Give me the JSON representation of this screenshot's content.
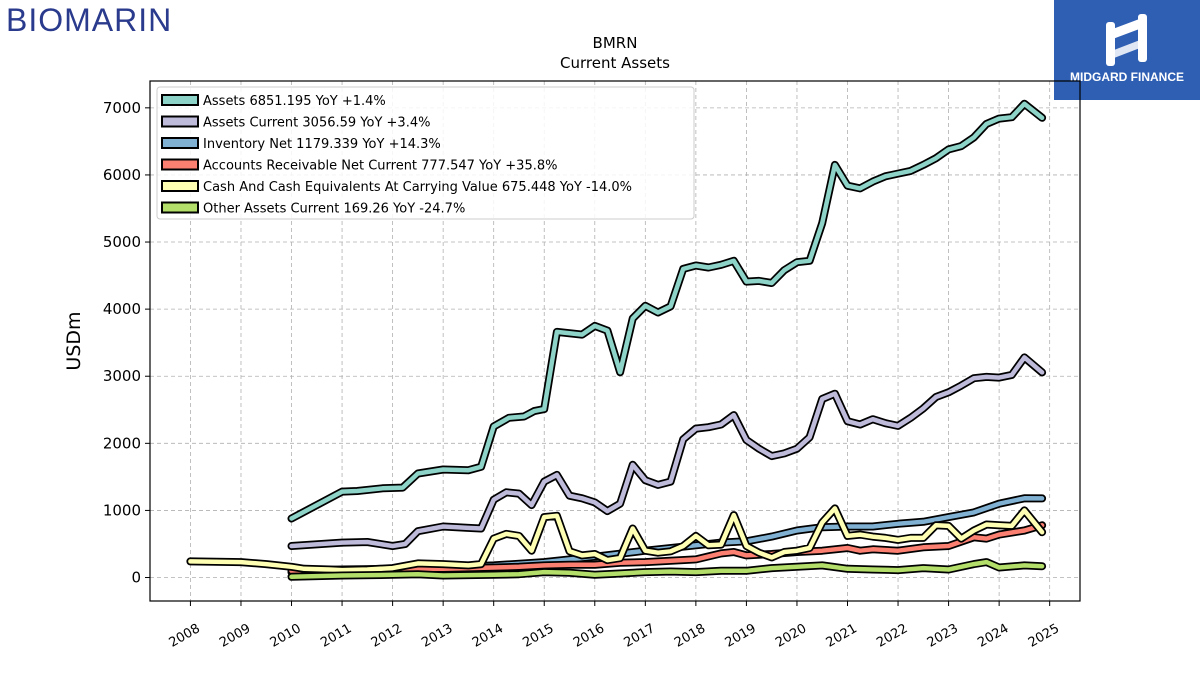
{
  "brand_left": {
    "text": "BIOMARIN"
  },
  "brand_right": {
    "text": "MIDGARD FINANCE"
  },
  "colors": {
    "assets": "#8dd3c7",
    "assets_current": "#bebada",
    "inventory": "#80b1d3",
    "receivable": "#fb8072",
    "cash": "#ffffb3",
    "other": "#b3de69",
    "brand_left": "#2a3a8c",
    "brand_right_bg": "#2f5fb3"
  },
  "chart_data": {
    "type": "line",
    "title": "BMRN",
    "subtitle": "Current  Assets",
    "ylabel": "USDm",
    "xlabel": "",
    "xlim": [
      2007.2,
      2025.6
    ],
    "ylim": [
      -350,
      7400
    ],
    "x_ticks": [
      "2008",
      "2009",
      "2010",
      "2011",
      "2012",
      "2013",
      "2014",
      "2015",
      "2016",
      "2017",
      "2018",
      "2019",
      "2020",
      "2021",
      "2022",
      "2023",
      "2024",
      "2025"
    ],
    "y_ticks": [
      "0",
      "1000",
      "2000",
      "3000",
      "4000",
      "5000",
      "6000",
      "7000"
    ],
    "grid": true,
    "legend_position": "top-left",
    "series": [
      {
        "key": "assets",
        "name": "Assets  6851.195 YoY +1.4%",
        "points": [
          [
            2010,
            880
          ],
          [
            2011,
            1280
          ],
          [
            2011.3,
            1290
          ],
          [
            2011.8,
            1330
          ],
          [
            2012.2,
            1340
          ],
          [
            2012.5,
            1550
          ],
          [
            2013,
            1610
          ],
          [
            2013.5,
            1600
          ],
          [
            2013.75,
            1650
          ],
          [
            2014,
            2250
          ],
          [
            2014.3,
            2380
          ],
          [
            2014.6,
            2400
          ],
          [
            2014.8,
            2480
          ],
          [
            2015,
            2510
          ],
          [
            2015.25,
            3660
          ],
          [
            2015.75,
            3620
          ],
          [
            2016,
            3750
          ],
          [
            2016.25,
            3680
          ],
          [
            2016.5,
            3060
          ],
          [
            2016.75,
            3860
          ],
          [
            2017,
            4050
          ],
          [
            2017.25,
            3950
          ],
          [
            2017.5,
            4040
          ],
          [
            2017.75,
            4600
          ],
          [
            2018,
            4650
          ],
          [
            2018.25,
            4620
          ],
          [
            2018.5,
            4660
          ],
          [
            2018.75,
            4720
          ],
          [
            2019,
            4410
          ],
          [
            2019.25,
            4420
          ],
          [
            2019.5,
            4390
          ],
          [
            2019.75,
            4580
          ],
          [
            2020,
            4700
          ],
          [
            2020.25,
            4720
          ],
          [
            2020.5,
            5280
          ],
          [
            2020.75,
            6150
          ],
          [
            2021,
            5840
          ],
          [
            2021.25,
            5800
          ],
          [
            2021.5,
            5900
          ],
          [
            2021.75,
            5980
          ],
          [
            2022,
            6020
          ],
          [
            2022.25,
            6060
          ],
          [
            2022.5,
            6150
          ],
          [
            2022.75,
            6250
          ],
          [
            2023,
            6380
          ],
          [
            2023.25,
            6430
          ],
          [
            2023.5,
            6560
          ],
          [
            2023.75,
            6760
          ],
          [
            2024,
            6840
          ],
          [
            2024.25,
            6860
          ],
          [
            2024.5,
            7060
          ],
          [
            2024.85,
            6851
          ]
        ]
      },
      {
        "key": "assets_current",
        "name": "Assets Current  3056.59 YoY +3.4%",
        "points": [
          [
            2010,
            470
          ],
          [
            2011,
            520
          ],
          [
            2011.5,
            530
          ],
          [
            2012,
            470
          ],
          [
            2012.25,
            500
          ],
          [
            2012.5,
            690
          ],
          [
            2013,
            760
          ],
          [
            2013.5,
            740
          ],
          [
            2013.75,
            730
          ],
          [
            2014,
            1160
          ],
          [
            2014.25,
            1270
          ],
          [
            2014.5,
            1250
          ],
          [
            2014.75,
            1080
          ],
          [
            2015,
            1430
          ],
          [
            2015.25,
            1530
          ],
          [
            2015.5,
            1220
          ],
          [
            2015.75,
            1180
          ],
          [
            2016,
            1120
          ],
          [
            2016.25,
            990
          ],
          [
            2016.5,
            1100
          ],
          [
            2016.75,
            1680
          ],
          [
            2017,
            1450
          ],
          [
            2017.25,
            1380
          ],
          [
            2017.5,
            1430
          ],
          [
            2017.75,
            2060
          ],
          [
            2018,
            2220
          ],
          [
            2018.25,
            2240
          ],
          [
            2018.5,
            2280
          ],
          [
            2018.75,
            2420
          ],
          [
            2019,
            2050
          ],
          [
            2019.25,
            1920
          ],
          [
            2019.5,
            1810
          ],
          [
            2019.75,
            1850
          ],
          [
            2020,
            1920
          ],
          [
            2020.25,
            2090
          ],
          [
            2020.5,
            2660
          ],
          [
            2020.75,
            2740
          ],
          [
            2021,
            2330
          ],
          [
            2021.25,
            2280
          ],
          [
            2021.5,
            2360
          ],
          [
            2021.75,
            2300
          ],
          [
            2022,
            2260
          ],
          [
            2022.25,
            2380
          ],
          [
            2022.5,
            2520
          ],
          [
            2022.75,
            2690
          ],
          [
            2023,
            2760
          ],
          [
            2023.25,
            2860
          ],
          [
            2023.5,
            2970
          ],
          [
            2023.75,
            2990
          ],
          [
            2024,
            2980
          ],
          [
            2024.25,
            3020
          ],
          [
            2024.5,
            3280
          ],
          [
            2024.85,
            3057
          ]
        ]
      },
      {
        "key": "inventory",
        "name": "Inventory Net  1179.339 YoY +14.3%",
        "points": [
          [
            2010,
            80
          ],
          [
            2011,
            100
          ],
          [
            2012,
            120
          ],
          [
            2013,
            150
          ],
          [
            2014,
            180
          ],
          [
            2015,
            230
          ],
          [
            2016,
            310
          ],
          [
            2017,
            400
          ],
          [
            2018,
            480
          ],
          [
            2018.5,
            520
          ],
          [
            2019,
            540
          ],
          [
            2019.5,
            610
          ],
          [
            2020,
            700
          ],
          [
            2020.5,
            750
          ],
          [
            2021,
            760
          ],
          [
            2021.5,
            760
          ],
          [
            2022,
            800
          ],
          [
            2022.5,
            830
          ],
          [
            2023,
            900
          ],
          [
            2023.5,
            970
          ],
          [
            2024,
            1100
          ],
          [
            2024.5,
            1180
          ],
          [
            2024.85,
            1179
          ]
        ]
      },
      {
        "key": "receivable",
        "name": "Accounts Receivable Net Current  777.547 YoY +35.8%",
        "points": [
          [
            2010,
            100
          ],
          [
            2011,
            120
          ],
          [
            2012,
            130
          ],
          [
            2013,
            130
          ],
          [
            2014,
            150
          ],
          [
            2014.5,
            160
          ],
          [
            2015,
            180
          ],
          [
            2015.5,
            190
          ],
          [
            2016,
            190
          ],
          [
            2016.5,
            220
          ],
          [
            2017,
            230
          ],
          [
            2017.5,
            250
          ],
          [
            2018,
            270
          ],
          [
            2018.5,
            360
          ],
          [
            2018.75,
            380
          ],
          [
            2019,
            330
          ],
          [
            2019.5,
            350
          ],
          [
            2020,
            380
          ],
          [
            2020.5,
            400
          ],
          [
            2021,
            440
          ],
          [
            2021.25,
            400
          ],
          [
            2021.5,
            420
          ],
          [
            2022,
            400
          ],
          [
            2022.5,
            450
          ],
          [
            2023,
            470
          ],
          [
            2023.5,
            600
          ],
          [
            2023.75,
            580
          ],
          [
            2024,
            640
          ],
          [
            2024.5,
            700
          ],
          [
            2024.85,
            778
          ]
        ]
      },
      {
        "key": "cash",
        "name": "Cash And Cash Equivalents At Carrying Value  675.448 YoY -14.0%",
        "points": [
          [
            2008,
            240
          ],
          [
            2009,
            230
          ],
          [
            2009.5,
            200
          ],
          [
            2010,
            160
          ],
          [
            2010.25,
            130
          ],
          [
            2010.75,
            120
          ],
          [
            2011,
            110
          ],
          [
            2011.5,
            120
          ],
          [
            2012,
            140
          ],
          [
            2012.5,
            210
          ],
          [
            2013,
            200
          ],
          [
            2013.5,
            180
          ],
          [
            2013.75,
            200
          ],
          [
            2014,
            580
          ],
          [
            2014.25,
            650
          ],
          [
            2014.5,
            620
          ],
          [
            2014.75,
            400
          ],
          [
            2015,
            900
          ],
          [
            2015.25,
            920
          ],
          [
            2015.5,
            390
          ],
          [
            2015.75,
            330
          ],
          [
            2016,
            350
          ],
          [
            2016.25,
            260
          ],
          [
            2016.5,
            290
          ],
          [
            2016.75,
            730
          ],
          [
            2017,
            400
          ],
          [
            2017.25,
            370
          ],
          [
            2017.5,
            390
          ],
          [
            2017.75,
            470
          ],
          [
            2018,
            620
          ],
          [
            2018.25,
            480
          ],
          [
            2018.5,
            490
          ],
          [
            2018.75,
            930
          ],
          [
            2019,
            470
          ],
          [
            2019.25,
            370
          ],
          [
            2019.5,
            300
          ],
          [
            2019.75,
            380
          ],
          [
            2020,
            400
          ],
          [
            2020.25,
            440
          ],
          [
            2020.5,
            820
          ],
          [
            2020.75,
            1030
          ],
          [
            2021,
            620
          ],
          [
            2021.25,
            640
          ],
          [
            2021.5,
            610
          ],
          [
            2021.75,
            590
          ],
          [
            2022,
            560
          ],
          [
            2022.25,
            590
          ],
          [
            2022.5,
            590
          ],
          [
            2022.75,
            780
          ],
          [
            2023,
            770
          ],
          [
            2023.25,
            580
          ],
          [
            2023.5,
            700
          ],
          [
            2023.75,
            790
          ],
          [
            2024,
            780
          ],
          [
            2024.25,
            770
          ],
          [
            2024.5,
            1000
          ],
          [
            2024.85,
            675
          ]
        ]
      },
      {
        "key": "other",
        "name": "Other Assets Current  169.26 YoY -24.7%",
        "points": [
          [
            2010,
            10
          ],
          [
            2011,
            30
          ],
          [
            2012,
            40
          ],
          [
            2012.5,
            50
          ],
          [
            2013,
            30
          ],
          [
            2014,
            40
          ],
          [
            2014.5,
            50
          ],
          [
            2015,
            80
          ],
          [
            2015.5,
            70
          ],
          [
            2016,
            40
          ],
          [
            2016.5,
            60
          ],
          [
            2017,
            80
          ],
          [
            2017.5,
            90
          ],
          [
            2018,
            80
          ],
          [
            2018.5,
            100
          ],
          [
            2019,
            100
          ],
          [
            2019.5,
            140
          ],
          [
            2020,
            160
          ],
          [
            2020.5,
            180
          ],
          [
            2021,
            130
          ],
          [
            2021.5,
            120
          ],
          [
            2022,
            110
          ],
          [
            2022.5,
            140
          ],
          [
            2023,
            120
          ],
          [
            2023.5,
            200
          ],
          [
            2023.75,
            230
          ],
          [
            2024,
            150
          ],
          [
            2024.5,
            180
          ],
          [
            2024.85,
            169
          ]
        ]
      }
    ]
  }
}
